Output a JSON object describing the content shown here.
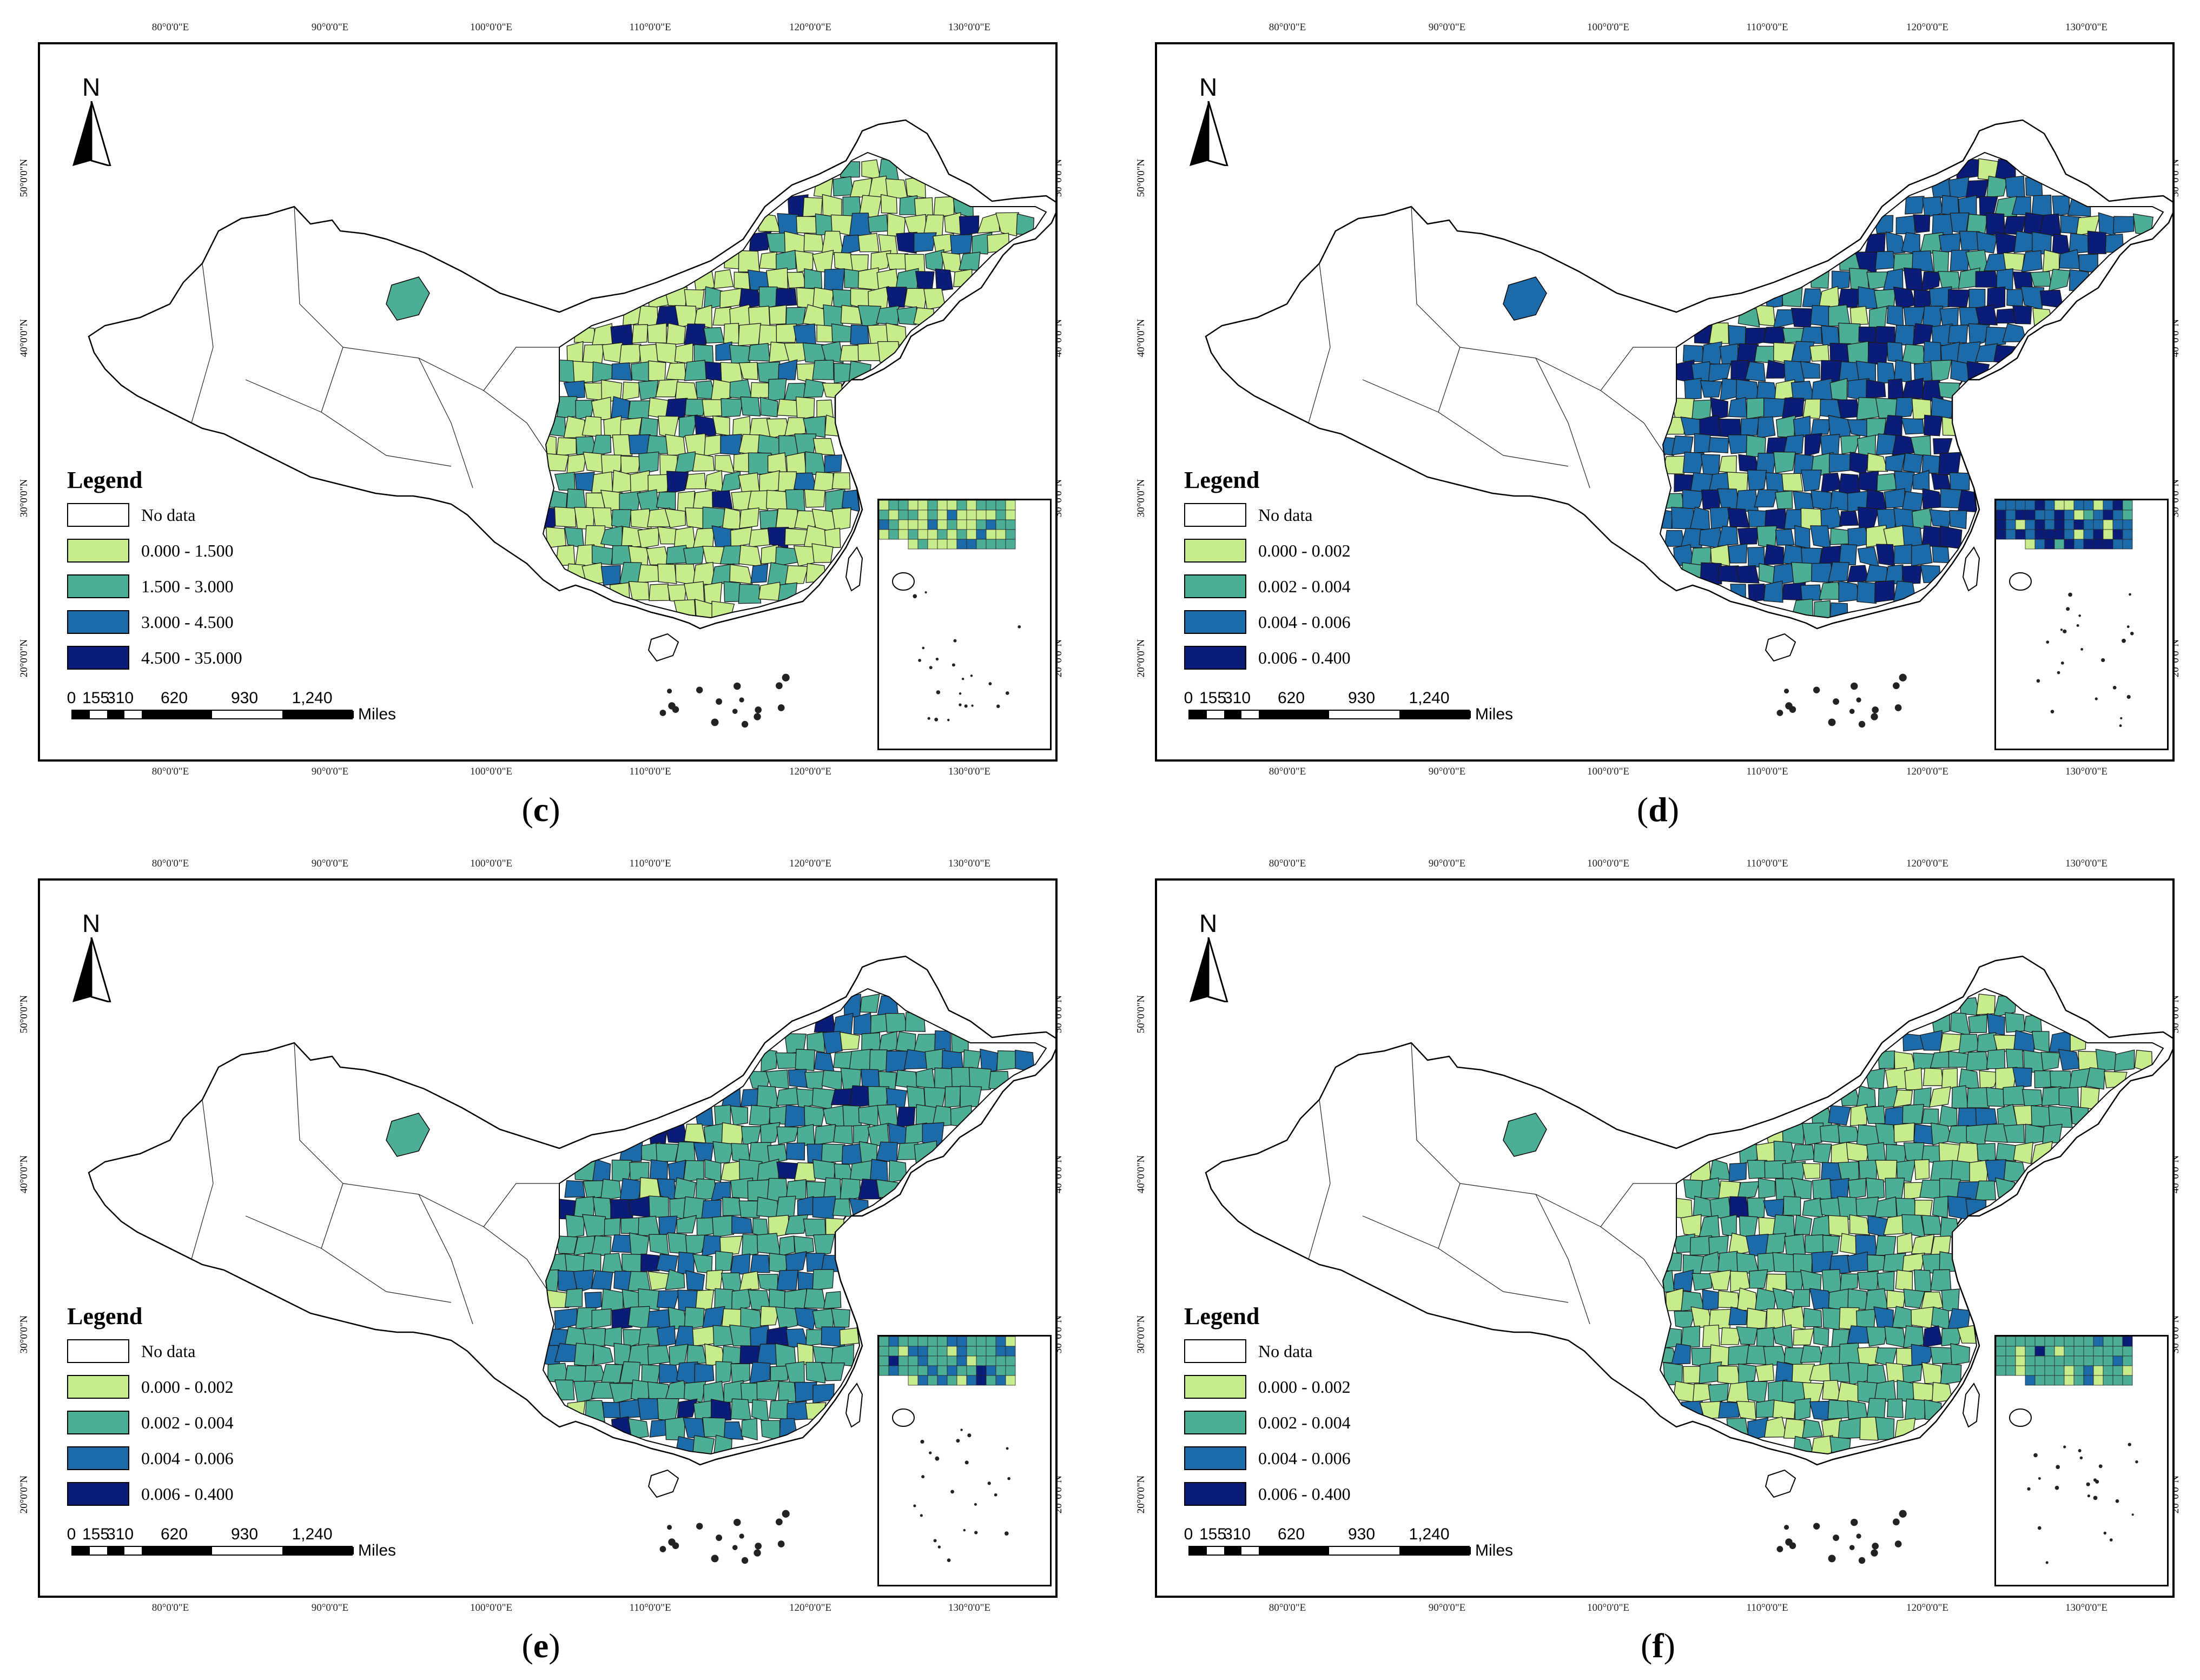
{
  "legend_title": "Legend",
  "legend_nodata": "No data",
  "lon_labels": [
    "80°0'0\"E",
    "90°0'0\"E",
    "100°0'0\"E",
    "110°0'0\"E",
    "120°0'0\"E",
    "130°0'0\"E"
  ],
  "lat_labels": [
    "50°0'0\"N",
    "40°0'0\"N",
    "30°0'0\"N",
    "20°0'0\"N"
  ],
  "north_label": "N",
  "scale": {
    "ticks": [
      "0",
      "155",
      "310",
      "620",
      "930",
      "1,240"
    ],
    "unit": "Miles"
  },
  "colors": {
    "nodata": "#ffffff",
    "class1": "#c8ec8c",
    "class2": "#4cae94",
    "class3": "#1c6aa8",
    "class4": "#0a1c78"
  },
  "panels": [
    {
      "caption_letter": "c",
      "legend_classes": [
        "0.000 - 1.500",
        "1.500 - 3.000",
        "3.000 - 4.500",
        "4.500 - 35.000"
      ],
      "class_mix": {
        "class1": 0.6,
        "class2": 0.28,
        "class3": 0.08,
        "class4": 0.04
      }
    },
    {
      "caption_letter": "d",
      "legend_classes": [
        "0.000 - 0.002",
        "0.002 - 0.004",
        "0.004 - 0.006",
        "0.006 - 0.400"
      ],
      "class_mix": {
        "class1": 0.07,
        "class2": 0.13,
        "class3": 0.52,
        "class4": 0.28
      }
    },
    {
      "caption_letter": "e",
      "legend_classes": [
        "0.000 - 0.002",
        "0.002 - 0.004",
        "0.004 - 0.006",
        "0.006 - 0.400"
      ],
      "class_mix": {
        "class1": 0.07,
        "class2": 0.6,
        "class3": 0.28,
        "class4": 0.05
      }
    },
    {
      "caption_letter": "f",
      "legend_classes": [
        "0.000 - 0.002",
        "0.002 - 0.004",
        "0.004 - 0.006",
        "0.006 - 0.400"
      ],
      "class_mix": {
        "class1": 0.25,
        "class2": 0.65,
        "class3": 0.09,
        "class4": 0.01
      }
    }
  ]
}
